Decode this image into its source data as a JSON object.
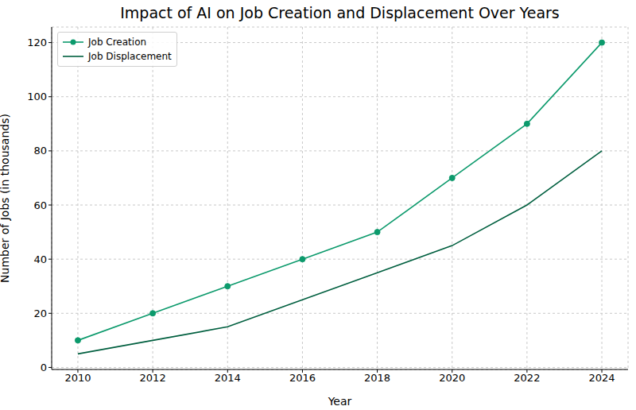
{
  "chart_data": {
    "type": "line",
    "title": "Impact of AI on Job Creation and Displacement Over Years",
    "x_label": "Year",
    "y_label": "Number of Jobs (in thousands)",
    "x": [
      2010,
      2012,
      2014,
      2016,
      2018,
      2020,
      2022,
      2024
    ],
    "series": [
      {
        "name": "Job Creation",
        "color": "#0c9a6c",
        "marker": "o",
        "line_style": "solid",
        "values": [
          10,
          20,
          30,
          40,
          50,
          70,
          90,
          120
        ]
      },
      {
        "name": "Job Displacement",
        "color": "#005f3f",
        "marker": "none",
        "line_style": "solid",
        "values": [
          5,
          10,
          15,
          25,
          35,
          45,
          60,
          80
        ]
      }
    ],
    "xlim": [
      2009.3,
      2024.7
    ],
    "xticks": [
      2010,
      2012,
      2014,
      2016,
      2018,
      2020,
      2022,
      2024
    ],
    "ylim": [
      -0.75,
      125.75
    ],
    "yticks": [
      0,
      20,
      40,
      60,
      80,
      100,
      120
    ],
    "grid": true,
    "legend": "upper left"
  }
}
